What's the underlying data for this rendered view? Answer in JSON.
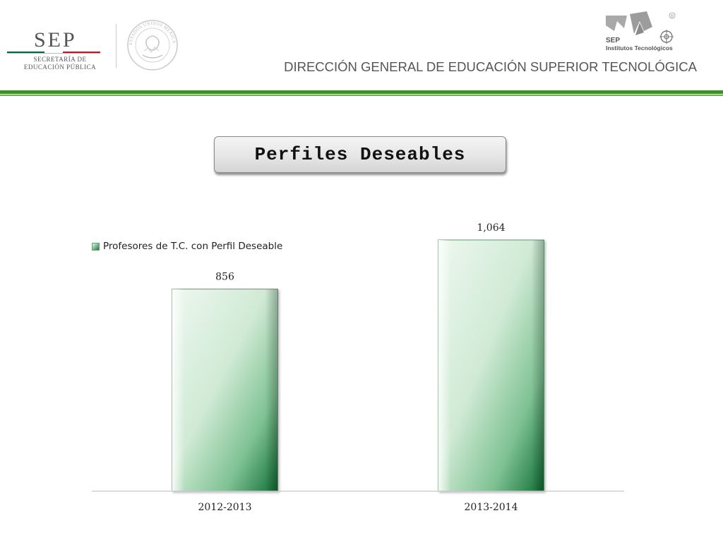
{
  "header": {
    "sep_logo": {
      "word": "SEP",
      "line1": "SECRETARÍA DE",
      "line2": "EDUCACIÓN PÚBLICA"
    },
    "seal_text": "ESTADOS UNIDOS MEXICANOS",
    "it_logo": {
      "word": "SEP",
      "subtitle": "Institutos Tecnológicos",
      "mark": "R"
    },
    "caption": "DIRECCIÓN GENERAL DE EDUCACIÓN SUPERIOR TECNOLÓGICA"
  },
  "title": "Perfiles Deseables",
  "colors": {
    "brand_green": "#3f8f2f",
    "bar_dark": "#0f6e34",
    "bar_light": "#eef8ef",
    "axis": "#c8c8c8"
  },
  "chart_data": {
    "type": "bar",
    "categories": [
      "2012-2013",
      "2013-2014"
    ],
    "series": [
      {
        "name": "Profesores de T.C. con Perfil Deseable",
        "values": [
          856,
          1064
        ]
      }
    ],
    "data_labels": [
      "856",
      "1,064"
    ],
    "ylim": [
      0,
      1064
    ],
    "legend_position": "top-left",
    "grid": false
  }
}
